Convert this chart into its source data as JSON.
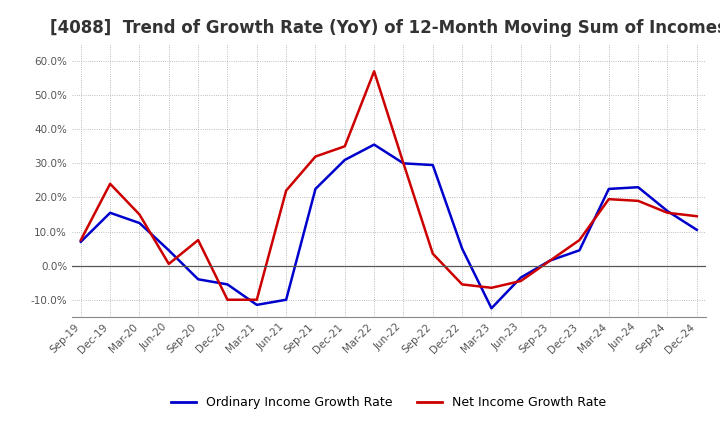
{
  "title": "[4088]  Trend of Growth Rate (YoY) of 12-Month Moving Sum of Incomes",
  "title_fontsize": 12,
  "ylim": [
    -15,
    65
  ],
  "yticks": [
    -10.0,
    0.0,
    10.0,
    20.0,
    30.0,
    40.0,
    50.0,
    60.0
  ],
  "background_color": "#ffffff",
  "grid_color": "#aaaaaa",
  "legend_labels": [
    "Ordinary Income Growth Rate",
    "Net Income Growth Rate"
  ],
  "legend_colors": [
    "#0000cc",
    "#cc0000"
  ],
  "x_labels": [
    "Sep-19",
    "Dec-19",
    "Mar-20",
    "Jun-20",
    "Sep-20",
    "Dec-20",
    "Mar-21",
    "Jun-21",
    "Sep-21",
    "Dec-21",
    "Mar-22",
    "Jun-22",
    "Sep-22",
    "Dec-22",
    "Mar-23",
    "Jun-23",
    "Sep-23",
    "Dec-23",
    "Mar-24",
    "Jun-24",
    "Sep-24",
    "Dec-24"
  ],
  "ordinary_income": [
    7.0,
    15.5,
    12.5,
    4.5,
    -4.0,
    -5.5,
    -11.5,
    -10.0,
    22.5,
    31.0,
    35.5,
    30.0,
    29.5,
    5.0,
    -12.5,
    -3.5,
    1.5,
    4.5,
    22.5,
    23.0,
    16.0,
    10.5
  ],
  "net_income": [
    7.5,
    24.0,
    15.0,
    0.5,
    7.5,
    -10.0,
    -10.0,
    22.0,
    32.0,
    35.0,
    57.0,
    30.0,
    3.5,
    -5.5,
    -6.5,
    -4.5,
    1.5,
    7.5,
    19.5,
    19.0,
    15.5,
    14.5
  ]
}
